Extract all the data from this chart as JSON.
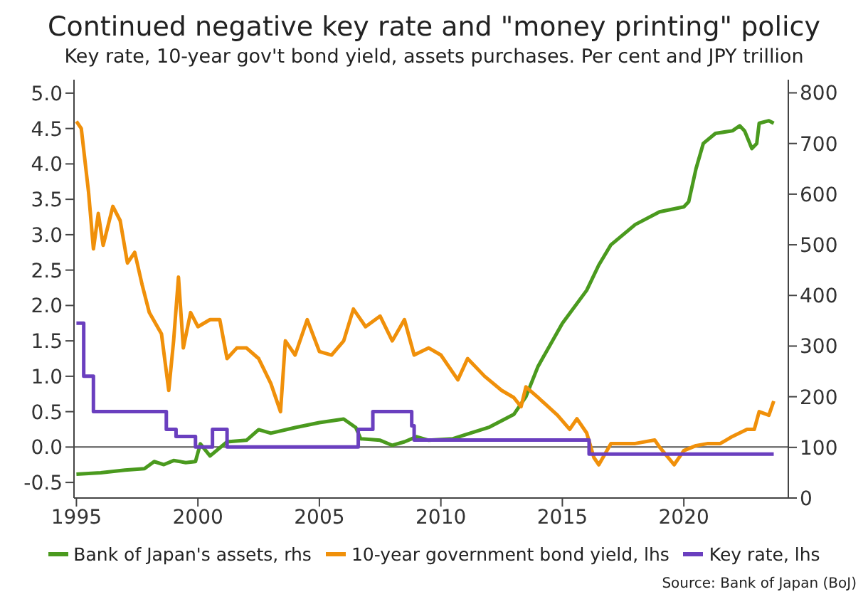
{
  "chart_data": {
    "type": "line",
    "title": "Continued negative key rate and \"money printing\" policy",
    "subtitle": "Key rate, 10-year gov't bond yield, assets purchases. Per cent and JPY trillion",
    "annotations": [
      "Source: Bank of Japan (BoJ)"
    ],
    "xlim": [
      1994.9,
      2024.3
    ],
    "xticks": [
      1995,
      2000,
      2005,
      2010,
      2015,
      2020
    ],
    "ylim": [
      -0.72,
      5.19
    ],
    "yticks": [
      -0.5,
      {
        "value": 0,
        "label": "0.0"
      },
      0.5,
      {
        "value": 1,
        "label": "1.0"
      },
      1.5,
      {
        "value": 2,
        "label": "2.0"
      },
      2.5,
      {
        "value": 3,
        "label": "3.0"
      },
      3.5,
      {
        "value": 4,
        "label": "4.0"
      },
      4.5,
      {
        "value": 5,
        "label": "5.0"
      }
    ],
    "y2lim": [
      0,
      826
    ],
    "y2ticks": [
      0,
      100,
      200,
      300,
      400,
      500,
      600,
      700,
      800
    ],
    "legend": "bottom",
    "marker": "none",
    "line_style": "solid",
    "ref_lines": [
      {
        "axis": "y",
        "value": 0,
        "color": "#555555"
      }
    ],
    "series": [
      {
        "name": "Bank of Japan's assets, rhs",
        "color": "#4a9a1e",
        "axis": "y2",
        "x": [
          1995,
          1996,
          1997,
          1997.8,
          1998.2,
          1998.6,
          1999.0,
          1999.5,
          1999.9,
          2000.1,
          2000.5,
          2001.2,
          2002,
          2002.5,
          2003,
          2004,
          2005,
          2006,
          2006.5,
          2006.7,
          2007.5,
          2008,
          2008.5,
          2009,
          2009.5,
          2010.5,
          2011,
          2012,
          2013,
          2013.5,
          2014,
          2015,
          2016,
          2016.5,
          2017,
          2018,
          2019,
          2020,
          2020.2,
          2020.5,
          2020.8,
          2021.3,
          2022,
          2022.3,
          2022.5,
          2022.8,
          2023.0,
          2023.1,
          2023.5,
          2023.7
        ],
        "values": [
          47,
          50,
          55,
          58,
          72,
          66,
          74,
          70,
          72,
          107,
          83,
          111,
          114,
          135,
          128,
          139,
          149,
          156,
          139,
          117,
          114,
          104,
          111,
          121,
          114,
          117,
          125,
          140,
          165,
          200,
          260,
          345,
          410,
          460,
          500,
          540,
          565,
          575,
          585,
          650,
          700,
          720,
          725,
          735,
          725,
          690,
          700,
          740,
          745,
          740
        ]
      },
      {
        "name": "10-year government bond yield, lhs",
        "color": "#f0900a",
        "x": [
          1995.0,
          1995.2,
          1995.5,
          1995.7,
          1995.9,
          1996.1,
          1996.5,
          1996.8,
          1997.1,
          1997.4,
          1997.7,
          1998.0,
          1998.5,
          1998.8,
          1999.0,
          1999.2,
          1999.4,
          1999.7,
          2000.0,
          2000.5,
          2000.9,
          2001.2,
          2001.6,
          2002.0,
          2002.5,
          2003.0,
          2003.4,
          2003.6,
          2004.0,
          2004.5,
          2005.0,
          2005.5,
          2006.0,
          2006.4,
          2006.9,
          2007.5,
          2008.0,
          2008.5,
          2008.9,
          2009.5,
          2010.0,
          2010.7,
          2011.1,
          2011.8,
          2012.5,
          2013.0,
          2013.3,
          2013.5,
          2014.0,
          2014.8,
          2015.3,
          2015.6,
          2016.0,
          2016.3,
          2016.5,
          2017.0,
          2018.0,
          2018.8,
          2019.0,
          2019.6,
          2020.0,
          2020.5,
          2021.0,
          2021.5,
          2022.0,
          2022.6,
          2022.9,
          2023.1,
          2023.5,
          2023.7
        ],
        "values": [
          4.6,
          4.5,
          3.6,
          2.8,
          3.3,
          2.85,
          3.4,
          3.2,
          2.6,
          2.75,
          2.3,
          1.9,
          1.6,
          0.8,
          1.5,
          2.4,
          1.4,
          1.9,
          1.7,
          1.8,
          1.8,
          1.25,
          1.4,
          1.4,
          1.25,
          0.9,
          0.5,
          1.5,
          1.3,
          1.8,
          1.35,
          1.3,
          1.5,
          1.95,
          1.7,
          1.85,
          1.5,
          1.8,
          1.3,
          1.4,
          1.3,
          0.95,
          1.25,
          1.0,
          0.8,
          0.7,
          0.57,
          0.85,
          0.7,
          0.45,
          0.25,
          0.4,
          0.2,
          -0.15,
          -0.25,
          0.05,
          0.05,
          0.1,
          0.0,
          -0.25,
          -0.05,
          0.02,
          0.05,
          0.05,
          0.15,
          0.25,
          0.25,
          0.5,
          0.45,
          0.65
        ]
      },
      {
        "name": "Key rate, lhs",
        "color": "#6a3fbf",
        "type": "step",
        "x": [
          1995.0,
          1995.3,
          1995.7,
          1998.7,
          1999.1,
          1999.9,
          2000.6,
          2001.2,
          2006.6,
          2007.2,
          2008.8,
          2008.9,
          2016.1,
          2023.7
        ],
        "values": [
          1.75,
          1.0,
          0.5,
          0.25,
          0.15,
          0.0,
          0.25,
          0.0,
          0.25,
          0.5,
          0.3,
          0.1,
          -0.1,
          -0.1
        ]
      }
    ]
  }
}
